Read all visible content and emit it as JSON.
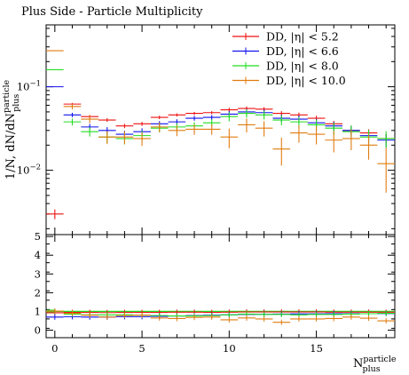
{
  "chart_data": {
    "type": "scatter",
    "title": "Plus Side - Particle Multiplicity",
    "xlabel": "N^{particle}_{plus}",
    "ylabel": "1/N, dN/dN^{particle}_{plus}",
    "yscale": "log",
    "xlim": [
      -0.5,
      19.5
    ],
    "ylim": [
      0.0017,
      0.55
    ],
    "x_ticks": [
      0,
      5,
      10,
      15
    ],
    "y_ticks": [
      {
        "value": 0.1,
        "label": "10^{-1}"
      },
      {
        "value": 0.01,
        "label": "10^{-2}"
      }
    ],
    "legend_position": "top-right",
    "x": [
      0,
      1,
      2,
      3,
      4,
      5,
      6,
      7,
      8,
      9,
      10,
      11,
      12,
      13,
      14,
      15,
      16,
      17,
      18,
      19
    ],
    "series": [
      {
        "name": "DD, |η| < 5.2",
        "color": "#ee1111",
        "values": [
          0.003,
          0.062,
          0.044,
          0.04,
          0.034,
          0.036,
          0.043,
          0.046,
          0.048,
          0.049,
          0.053,
          0.055,
          0.054,
          0.048,
          0.046,
          0.042,
          0.036,
          0.03,
          0.028,
          0.024
        ]
      },
      {
        "name": "DD, |η| < 6.6",
        "color": "#1111ee",
        "values": [
          0.1,
          0.046,
          0.033,
          0.03,
          0.027,
          0.029,
          0.036,
          0.038,
          0.042,
          0.043,
          0.047,
          0.05,
          0.049,
          0.042,
          0.041,
          0.037,
          0.034,
          0.03,
          0.026,
          0.023
        ]
      },
      {
        "name": "DD, |η| < 8.0",
        "color": "#22dd22",
        "values": [
          0.16,
          0.038,
          0.029,
          0.025,
          0.024,
          0.026,
          0.032,
          0.033,
          0.034,
          0.037,
          0.044,
          0.048,
          0.046,
          0.04,
          0.038,
          0.035,
          0.032,
          0.029,
          0.025,
          0.024
        ]
      },
      {
        "name": "DD, |η| < 10.0",
        "color": "#e07c10",
        "values": [
          0.27,
          0.058,
          0.041,
          0.025,
          0.025,
          0.024,
          0.033,
          0.03,
          0.031,
          0.031,
          0.025,
          0.035,
          0.032,
          0.018,
          0.028,
          0.027,
          0.023,
          0.024,
          0.02,
          0.012
        ]
      }
    ],
    "y_errors": [
      0.0004,
      0.002,
      0.002,
      0.002,
      0.002,
      0.002,
      0.002,
      0.002,
      0.002,
      0.002,
      0.003,
      0.003,
      0.003,
      0.003,
      0.003,
      0.003,
      0.003,
      0.003,
      0.003,
      0.003
    ],
    "ratio_panel": {
      "ylim": [
        -0.4,
        5.1
      ],
      "y_ticks": [
        0,
        1,
        2,
        3,
        4,
        5
      ],
      "reference": 1.0,
      "band": [
        0.9,
        1.1
      ],
      "series": [
        {
          "name": "DD, |η| < 5.2",
          "values": [
            0.93,
            0.95,
            0.95,
            0.94,
            0.95,
            0.95,
            0.95,
            0.96,
            0.96,
            0.95,
            0.96,
            0.97,
            0.97,
            0.97,
            0.97,
            0.97,
            0.96,
            0.96,
            0.96,
            0.96
          ]
        },
        {
          "name": "DD, |η| < 6.6",
          "values": [
            0.7,
            0.72,
            0.7,
            0.7,
            0.72,
            0.72,
            0.74,
            0.76,
            0.78,
            0.8,
            0.82,
            0.84,
            0.85,
            0.86,
            0.87,
            0.87,
            0.88,
            0.88,
            0.88,
            0.89
          ]
        },
        {
          "name": "DD, |η| < 8.0",
          "values": [
            1.0,
            0.86,
            0.82,
            0.82,
            0.82,
            0.8,
            0.78,
            0.76,
            0.76,
            0.78,
            0.82,
            0.86,
            0.84,
            0.84,
            0.82,
            0.84,
            0.84,
            0.86,
            0.88,
            0.9
          ]
        },
        {
          "name": "DD, |η| < 10.0",
          "values": [
            1.02,
            0.9,
            0.8,
            0.7,
            0.78,
            0.8,
            0.65,
            0.62,
            0.68,
            0.7,
            0.55,
            0.65,
            0.6,
            0.42,
            0.6,
            0.6,
            0.62,
            0.7,
            0.64,
            0.5
          ]
        }
      ]
    }
  }
}
